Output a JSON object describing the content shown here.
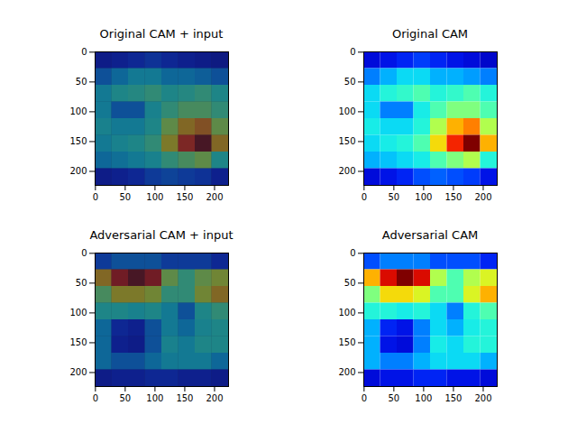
{
  "chart_data": [
    {
      "type": "overlay",
      "title": "Original CAM + input",
      "xlim": [
        -0.5,
        223.5
      ],
      "ylim": [
        223.5,
        -0.5
      ],
      "xticks": [
        0,
        50,
        100,
        150,
        200
      ],
      "yticks": [
        0,
        50,
        100,
        150,
        200
      ],
      "x_bins": [
        -0.5,
        27.5,
        55.5,
        83.5,
        111.5,
        139.5,
        167.5,
        195.5,
        223.5
      ],
      "y_bins": [
        -0.5,
        27.5,
        55.5,
        83.5,
        111.5,
        139.5,
        167.5,
        195.5,
        223.5
      ],
      "color_range": [
        0,
        1
      ],
      "cells": [
        [
          0.1,
          0.12,
          0.15,
          0.18,
          0.15,
          0.12,
          0.1,
          0.08
        ],
        [
          0.25,
          0.3,
          0.35,
          0.35,
          0.3,
          0.3,
          0.28,
          0.25
        ],
        [
          0.35,
          0.4,
          0.42,
          0.45,
          0.4,
          0.42,
          0.45,
          0.4
        ],
        [
          0.35,
          0.25,
          0.25,
          0.38,
          0.45,
          0.5,
          0.5,
          0.45
        ],
        [
          0.38,
          0.35,
          0.35,
          0.4,
          0.55,
          0.7,
          0.75,
          0.55
        ],
        [
          0.35,
          0.38,
          0.4,
          0.45,
          0.65,
          0.85,
          1.0,
          0.7
        ],
        [
          0.3,
          0.32,
          0.35,
          0.38,
          0.45,
          0.5,
          0.55,
          0.4
        ],
        [
          0.1,
          0.12,
          0.15,
          0.2,
          0.22,
          0.2,
          0.18,
          0.12
        ]
      ]
    },
    {
      "type": "heatmap",
      "title": "Original CAM",
      "xlim": [
        -0.5,
        223.5
      ],
      "ylim": [
        223.5,
        -0.5
      ],
      "xticks": [
        0,
        50,
        100,
        150,
        200
      ],
      "yticks": [
        0,
        50,
        100,
        150,
        200
      ],
      "x_bins": [
        -0.5,
        27.5,
        55.5,
        83.5,
        111.5,
        139.5,
        167.5,
        195.5,
        223.5
      ],
      "y_bins": [
        -0.5,
        27.5,
        55.5,
        83.5,
        111.5,
        139.5,
        167.5,
        195.5,
        223.5
      ],
      "color_range": [
        0,
        1
      ],
      "cells": [
        [
          0.1,
          0.12,
          0.15,
          0.18,
          0.15,
          0.12,
          0.1,
          0.08
        ],
        [
          0.25,
          0.3,
          0.35,
          0.35,
          0.3,
          0.3,
          0.28,
          0.25
        ],
        [
          0.35,
          0.4,
          0.42,
          0.45,
          0.4,
          0.42,
          0.45,
          0.4
        ],
        [
          0.35,
          0.25,
          0.25,
          0.38,
          0.45,
          0.5,
          0.5,
          0.45
        ],
        [
          0.38,
          0.35,
          0.35,
          0.4,
          0.55,
          0.7,
          0.75,
          0.55
        ],
        [
          0.35,
          0.38,
          0.4,
          0.45,
          0.65,
          0.85,
          1.0,
          0.7
        ],
        [
          0.3,
          0.32,
          0.35,
          0.38,
          0.45,
          0.5,
          0.55,
          0.4
        ],
        [
          0.1,
          0.12,
          0.15,
          0.2,
          0.22,
          0.2,
          0.18,
          0.12
        ]
      ]
    },
    {
      "type": "overlay",
      "title": "Adversarial CAM + input",
      "xlim": [
        -0.5,
        223.5
      ],
      "ylim": [
        223.5,
        -0.5
      ],
      "xticks": [
        0,
        50,
        100,
        150,
        200
      ],
      "yticks": [
        0,
        50,
        100,
        150,
        200
      ],
      "x_bins": [
        -0.5,
        27.5,
        55.5,
        83.5,
        111.5,
        139.5,
        167.5,
        195.5,
        223.5
      ],
      "y_bins": [
        -0.5,
        27.5,
        55.5,
        83.5,
        111.5,
        139.5,
        167.5,
        195.5,
        223.5
      ],
      "color_range": [
        0,
        1
      ],
      "cells": [
        [
          0.2,
          0.25,
          0.25,
          0.25,
          0.2,
          0.2,
          0.2,
          0.15
        ],
        [
          0.7,
          0.9,
          1.0,
          0.9,
          0.55,
          0.45,
          0.55,
          0.6
        ],
        [
          0.5,
          0.65,
          0.65,
          0.6,
          0.45,
          0.45,
          0.6,
          0.7
        ],
        [
          0.4,
          0.4,
          0.38,
          0.4,
          0.35,
          0.25,
          0.4,
          0.45
        ],
        [
          0.3,
          0.15,
          0.12,
          0.25,
          0.35,
          0.3,
          0.38,
          0.4
        ],
        [
          0.3,
          0.12,
          0.1,
          0.25,
          0.38,
          0.35,
          0.4,
          0.4
        ],
        [
          0.3,
          0.25,
          0.25,
          0.3,
          0.35,
          0.35,
          0.35,
          0.3
        ],
        [
          0.1,
          0.12,
          0.12,
          0.15,
          0.15,
          0.12,
          0.12,
          0.1
        ]
      ]
    },
    {
      "type": "heatmap",
      "title": "Adversarial CAM",
      "xlim": [
        -0.5,
        223.5
      ],
      "ylim": [
        223.5,
        -0.5
      ],
      "xticks": [
        0,
        50,
        100,
        150,
        200
      ],
      "yticks": [
        0,
        50,
        100,
        150,
        200
      ],
      "x_bins": [
        -0.5,
        27.5,
        55.5,
        83.5,
        111.5,
        139.5,
        167.5,
        195.5,
        223.5
      ],
      "y_bins": [
        -0.5,
        27.5,
        55.5,
        83.5,
        111.5,
        139.5,
        167.5,
        195.5,
        223.5
      ],
      "color_range": [
        0,
        1
      ],
      "cells": [
        [
          0.2,
          0.25,
          0.25,
          0.25,
          0.2,
          0.2,
          0.2,
          0.15
        ],
        [
          0.7,
          0.9,
          1.0,
          0.9,
          0.55,
          0.45,
          0.55,
          0.6
        ],
        [
          0.5,
          0.65,
          0.65,
          0.6,
          0.45,
          0.45,
          0.6,
          0.7
        ],
        [
          0.4,
          0.4,
          0.38,
          0.4,
          0.35,
          0.25,
          0.4,
          0.45
        ],
        [
          0.3,
          0.15,
          0.12,
          0.25,
          0.35,
          0.3,
          0.38,
          0.4
        ],
        [
          0.3,
          0.12,
          0.1,
          0.25,
          0.38,
          0.35,
          0.4,
          0.4
        ],
        [
          0.3,
          0.25,
          0.25,
          0.3,
          0.35,
          0.35,
          0.35,
          0.3
        ],
        [
          0.1,
          0.12,
          0.12,
          0.15,
          0.15,
          0.12,
          0.12,
          0.1
        ]
      ]
    }
  ]
}
